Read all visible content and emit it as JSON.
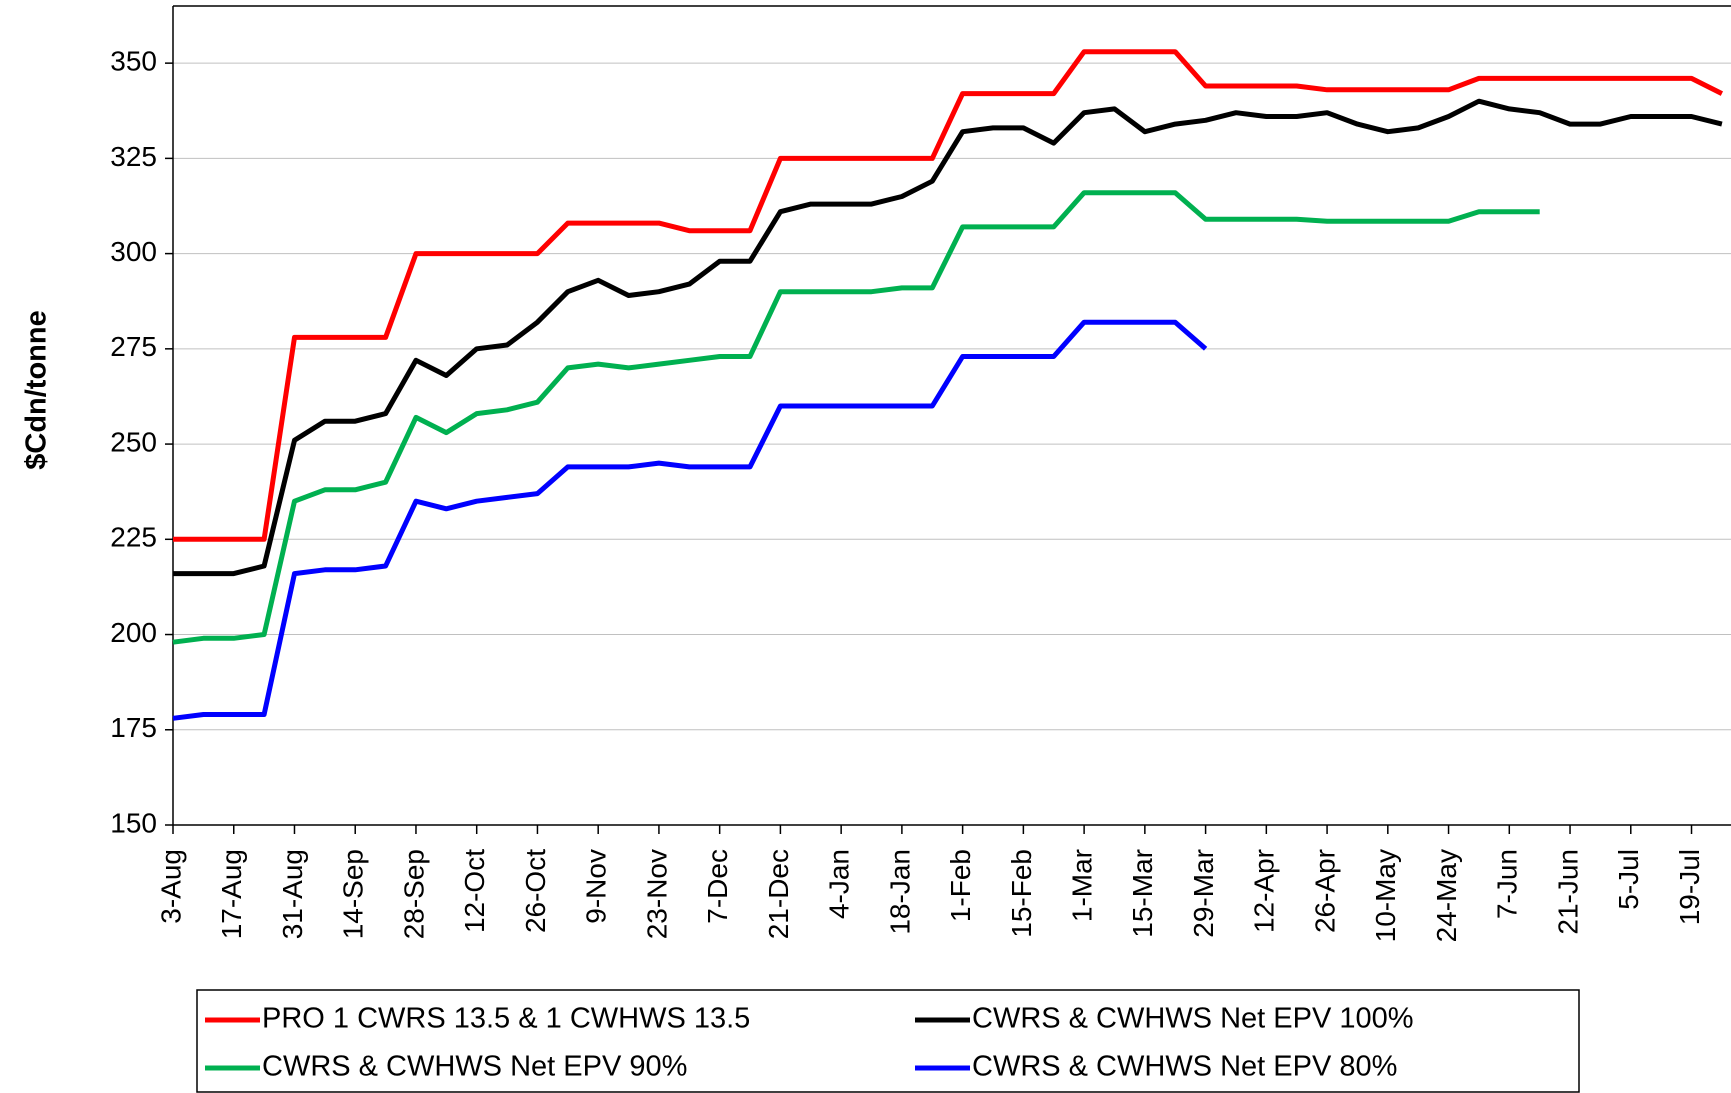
{
  "chart_data": {
    "type": "line",
    "y_label": "$Cdn/tonne",
    "categories": [
      "3-Aug",
      null,
      "17-Aug",
      null,
      "31-Aug",
      null,
      "14-Sep",
      null,
      "28-Sep",
      null,
      "12-Oct",
      null,
      "26-Oct",
      null,
      "9-Nov",
      null,
      "23-Nov",
      null,
      "7-Dec",
      null,
      "21-Dec",
      null,
      "4-Jan",
      null,
      "18-Jan",
      null,
      "1-Feb",
      null,
      "15-Feb",
      null,
      "1-Mar",
      null,
      "15-Mar",
      null,
      "29-Mar",
      null,
      "12-Apr",
      null,
      "26-Apr",
      null,
      "10-May",
      null,
      "24-May",
      null,
      "7-Jun",
      null,
      "21-Jun",
      null,
      "5-Jul",
      null,
      "19-Jul",
      null
    ],
    "series": [
      {
        "name": "PRO 1 CWRS 13.5 & 1 CWHWS 13.5",
        "color": "#ff0000",
        "values": [
          225,
          225,
          225,
          225,
          278,
          278,
          278,
          278,
          300,
          300,
          300,
          300,
          300,
          308,
          308,
          308,
          308,
          306,
          306,
          306,
          325,
          325,
          325,
          325,
          325,
          325,
          342,
          342,
          342,
          342,
          353,
          353,
          353,
          353,
          344,
          344,
          344,
          344,
          343,
          343,
          343,
          343,
          343,
          346,
          346,
          346,
          346,
          346,
          346,
          346,
          346,
          342
        ]
      },
      {
        "name": "CWRS & CWHWS Net EPV 100%",
        "color": "#000000",
        "values": [
          216,
          216,
          216,
          218,
          251,
          256,
          256,
          258,
          272,
          268,
          275,
          276,
          282,
          290,
          293,
          289,
          290,
          292,
          298,
          298,
          311,
          313,
          313,
          313,
          315,
          319,
          332,
          333,
          333,
          329,
          337,
          338,
          332,
          334,
          335,
          337,
          336,
          336,
          337,
          334,
          332,
          333,
          336,
          340,
          338,
          337,
          334,
          334,
          336,
          336,
          336,
          334
        ]
      },
      {
        "name": "CWRS & CWHWS Net EPV 90%",
        "color": "#00b050",
        "values": [
          198,
          199,
          199,
          200,
          235,
          238,
          238,
          240,
          257,
          253,
          258,
          259,
          261,
          270,
          271,
          270,
          271,
          272,
          273,
          273,
          290,
          290,
          290,
          290,
          291,
          291,
          307,
          307,
          307,
          307,
          316,
          316,
          316,
          316,
          309,
          309,
          309,
          309,
          308.5,
          308.5,
          308.5,
          308.5,
          308.5,
          311,
          311,
          311,
          null,
          null,
          null,
          null,
          null,
          null
        ]
      },
      {
        "name": "CWRS & CWHWS Net EPV 80%",
        "color": "#0000ff",
        "values": [
          178,
          179,
          179,
          179,
          216,
          217,
          217,
          218,
          235,
          233,
          235,
          236,
          237,
          244,
          244,
          244,
          245,
          244,
          244,
          244,
          260,
          260,
          260,
          260,
          260,
          260,
          273,
          273,
          273,
          273,
          282,
          282,
          282,
          282,
          275,
          null,
          null,
          null,
          null,
          null,
          null,
          null,
          null,
          null,
          null,
          null,
          null,
          null,
          null,
          null,
          null,
          null
        ]
      }
    ],
    "ylim": [
      150,
      365
    ],
    "yticks": [
      150,
      175,
      200,
      225,
      250,
      275,
      300,
      325,
      350
    ],
    "grid": true
  }
}
